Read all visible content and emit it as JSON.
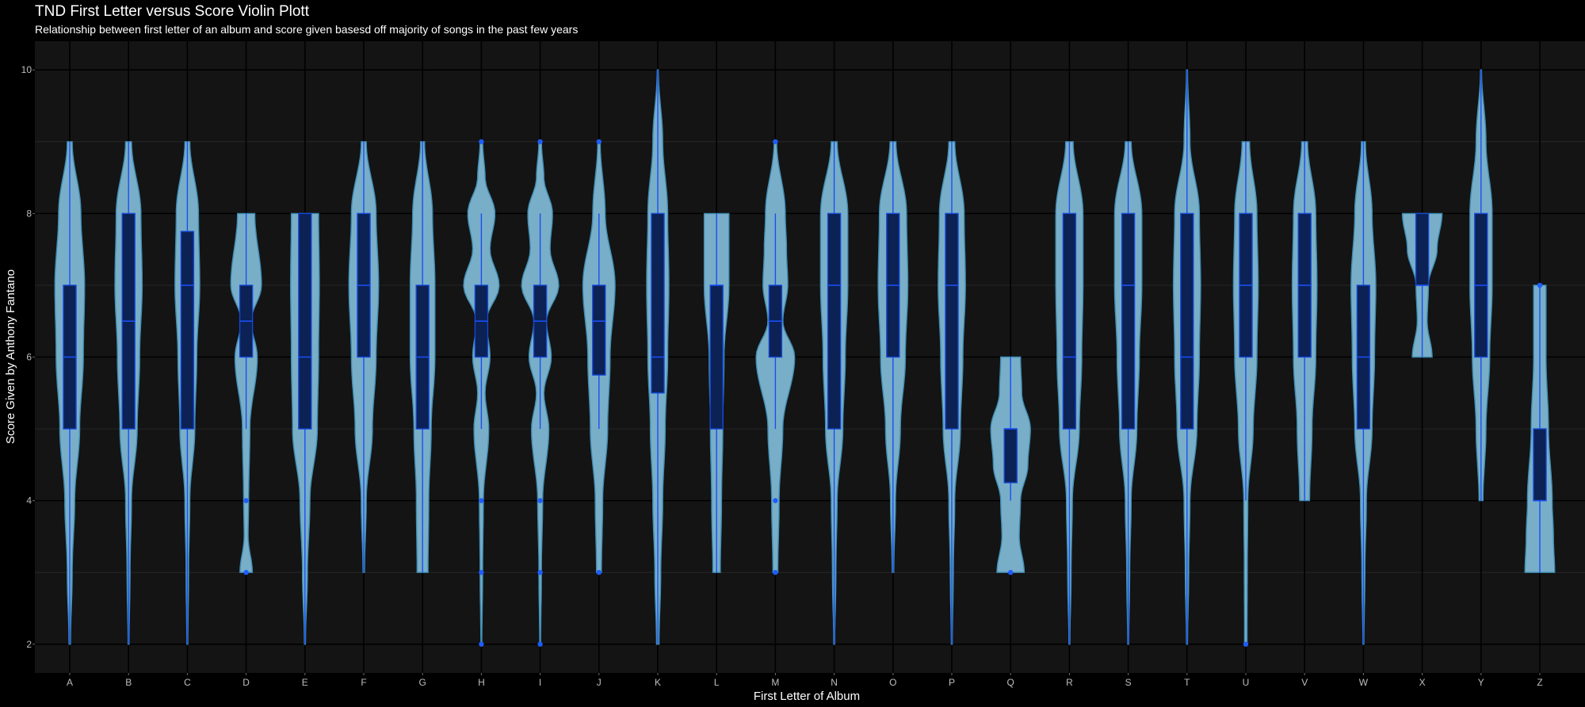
{
  "chart_data": {
    "type": "violin",
    "title": "TND First Letter versus Score Violin Plott",
    "subtitle": "Relationship between first letter of an album and score given basesd off majority of songs in the past few years",
    "xlabel": "First Letter of Album",
    "ylabel": "Score Given by Anthony Fantano",
    "ylim": [
      1.6,
      10.4
    ],
    "yticks": [
      2,
      4,
      6,
      8,
      10
    ],
    "grid": true,
    "legend": "none",
    "colors": {
      "background": "#000000",
      "panel": "#141414",
      "grid_major": "#000000",
      "grid_minor": "#262626",
      "violin_fill": "#79aec8",
      "violin_stroke": "#3f8db4",
      "box_fill": "#0c2154",
      "box_stroke": "#1447d6",
      "whisker": "#1a4ff2",
      "outlier": "#1e5cff"
    },
    "categories": [
      "A",
      "B",
      "C",
      "D",
      "E",
      "F",
      "G",
      "H",
      "I",
      "J",
      "K",
      "L",
      "M",
      "N",
      "O",
      "P",
      "Q",
      "R",
      "S",
      "T",
      "U",
      "V",
      "W",
      "X",
      "Y",
      "Z"
    ],
    "violins": [
      {
        "letter": "A",
        "min": 2,
        "max": 9,
        "profile": [
          [
            2,
            0.03
          ],
          [
            3,
            0.1
          ],
          [
            4,
            0.2
          ],
          [
            5,
            0.4
          ],
          [
            6,
            0.55
          ],
          [
            7,
            0.6
          ],
          [
            8,
            0.45
          ],
          [
            9,
            0.1
          ]
        ]
      },
      {
        "letter": "B",
        "min": 2,
        "max": 9,
        "profile": [
          [
            2,
            0.02
          ],
          [
            3,
            0.06
          ],
          [
            4,
            0.12
          ],
          [
            5,
            0.35
          ],
          [
            6,
            0.45
          ],
          [
            7,
            0.55
          ],
          [
            8,
            0.5
          ],
          [
            9,
            0.12
          ]
        ]
      },
      {
        "letter": "C",
        "min": 2,
        "max": 9,
        "profile": [
          [
            2,
            0.02
          ],
          [
            3,
            0.05
          ],
          [
            4,
            0.1
          ],
          [
            5,
            0.3
          ],
          [
            6,
            0.38
          ],
          [
            7,
            0.5
          ],
          [
            8,
            0.45
          ],
          [
            9,
            0.1
          ]
        ]
      },
      {
        "letter": "D",
        "min": 3,
        "max": 8,
        "profile": [
          [
            3,
            0.25
          ],
          [
            3.5,
            0.08
          ],
          [
            4,
            0.1
          ],
          [
            5,
            0.15
          ],
          [
            6,
            0.45
          ],
          [
            6.5,
            0.2
          ],
          [
            7,
            0.62
          ],
          [
            8,
            0.35
          ]
        ]
      },
      {
        "letter": "E",
        "min": 2,
        "max": 8,
        "profile": [
          [
            2,
            0.02
          ],
          [
            3,
            0.1
          ],
          [
            4,
            0.2
          ],
          [
            5,
            0.5
          ],
          [
            6,
            0.55
          ],
          [
            7,
            0.58
          ],
          [
            8,
            0.55
          ]
        ]
      },
      {
        "letter": "F",
        "min": 3,
        "max": 9,
        "profile": [
          [
            3,
            0.03
          ],
          [
            4,
            0.1
          ],
          [
            5,
            0.35
          ],
          [
            6,
            0.5
          ],
          [
            7,
            0.6
          ],
          [
            8,
            0.5
          ],
          [
            9,
            0.1
          ]
        ]
      },
      {
        "letter": "G",
        "min": 3,
        "max": 9,
        "profile": [
          [
            3,
            0.22
          ],
          [
            4,
            0.25
          ],
          [
            5,
            0.35
          ],
          [
            6,
            0.5
          ],
          [
            7,
            0.5
          ],
          [
            8,
            0.4
          ],
          [
            9,
            0.08
          ]
        ]
      },
      {
        "letter": "H",
        "min": 2,
        "max": 9,
        "profile": [
          [
            2,
            0.02
          ],
          [
            3,
            0.05
          ],
          [
            4,
            0.08
          ],
          [
            5,
            0.3
          ],
          [
            5.5,
            0.15
          ],
          [
            6,
            0.35
          ],
          [
            6.5,
            0.2
          ],
          [
            7,
            0.72
          ],
          [
            7.5,
            0.35
          ],
          [
            8,
            0.55
          ],
          [
            8.5,
            0.15
          ],
          [
            9,
            0.05
          ]
        ]
      },
      {
        "letter": "I",
        "min": 2,
        "max": 9,
        "profile": [
          [
            2,
            0.02
          ],
          [
            3,
            0.05
          ],
          [
            4,
            0.1
          ],
          [
            5,
            0.35
          ],
          [
            5.5,
            0.15
          ],
          [
            6,
            0.45
          ],
          [
            6.5,
            0.25
          ],
          [
            7,
            0.75
          ],
          [
            7.5,
            0.4
          ],
          [
            8,
            0.5
          ],
          [
            8.5,
            0.15
          ],
          [
            9,
            0.05
          ]
        ]
      },
      {
        "letter": "J",
        "min": 3,
        "max": 9,
        "profile": [
          [
            3,
            0.1
          ],
          [
            4,
            0.15
          ],
          [
            5,
            0.35
          ],
          [
            6,
            0.45
          ],
          [
            7,
            0.65
          ],
          [
            8,
            0.25
          ],
          [
            9,
            0.05
          ]
        ]
      },
      {
        "letter": "K",
        "min": 2,
        "max": 10,
        "profile": [
          [
            2,
            0.05
          ],
          [
            3,
            0.12
          ],
          [
            4,
            0.2
          ],
          [
            5,
            0.3
          ],
          [
            6,
            0.4
          ],
          [
            7,
            0.45
          ],
          [
            8,
            0.4
          ],
          [
            9,
            0.2
          ],
          [
            10,
            0.02
          ]
        ]
      },
      {
        "letter": "L",
        "min": 3,
        "max": 8,
        "profile": [
          [
            3,
            0.15
          ],
          [
            4,
            0.2
          ],
          [
            5,
            0.25
          ],
          [
            6,
            0.3
          ],
          [
            7,
            0.5
          ],
          [
            8,
            0.5
          ]
        ]
      },
      {
        "letter": "M",
        "min": 3,
        "max": 9,
        "profile": [
          [
            3,
            0.1
          ],
          [
            4,
            0.15
          ],
          [
            5,
            0.3
          ],
          [
            6,
            0.78
          ],
          [
            6.5,
            0.3
          ],
          [
            7,
            0.5
          ],
          [
            7.5,
            0.45
          ],
          [
            8,
            0.4
          ],
          [
            9,
            0.05
          ]
        ]
      },
      {
        "letter": "N",
        "min": 2,
        "max": 9,
        "profile": [
          [
            2,
            0.02
          ],
          [
            3,
            0.07
          ],
          [
            4,
            0.12
          ],
          [
            5,
            0.35
          ],
          [
            6,
            0.45
          ],
          [
            7,
            0.55
          ],
          [
            8,
            0.55
          ],
          [
            9,
            0.12
          ]
        ]
      },
      {
        "letter": "O",
        "min": 3,
        "max": 9,
        "profile": [
          [
            3,
            0.03
          ],
          [
            4,
            0.1
          ],
          [
            5,
            0.3
          ],
          [
            6,
            0.5
          ],
          [
            7,
            0.6
          ],
          [
            8,
            0.55
          ],
          [
            9,
            0.12
          ]
        ]
      },
      {
        "letter": "P",
        "min": 2,
        "max": 9,
        "profile": [
          [
            2,
            0.02
          ],
          [
            3,
            0.06
          ],
          [
            4,
            0.12
          ],
          [
            5,
            0.35
          ],
          [
            6,
            0.45
          ],
          [
            7,
            0.55
          ],
          [
            8,
            0.5
          ],
          [
            9,
            0.12
          ]
        ]
      },
      {
        "letter": "Q",
        "min": 3,
        "max": 6,
        "profile": [
          [
            3,
            0.55
          ],
          [
            3.5,
            0.35
          ],
          [
            4,
            0.4
          ],
          [
            4.5,
            0.7
          ],
          [
            5,
            0.8
          ],
          [
            5.5,
            0.45
          ],
          [
            6,
            0.4
          ]
        ]
      },
      {
        "letter": "R",
        "min": 2,
        "max": 9,
        "profile": [
          [
            2,
            0.02
          ],
          [
            3,
            0.07
          ],
          [
            4,
            0.12
          ],
          [
            5,
            0.4
          ],
          [
            6,
            0.5
          ],
          [
            7,
            0.55
          ],
          [
            8,
            0.55
          ],
          [
            9,
            0.15
          ]
        ]
      },
      {
        "letter": "S",
        "min": 2,
        "max": 9,
        "profile": [
          [
            2,
            0.02
          ],
          [
            3,
            0.06
          ],
          [
            4,
            0.12
          ],
          [
            5,
            0.35
          ],
          [
            6,
            0.45
          ],
          [
            7,
            0.55
          ],
          [
            8,
            0.55
          ],
          [
            9,
            0.12
          ]
        ]
      },
      {
        "letter": "T",
        "min": 2,
        "max": 10,
        "profile": [
          [
            2,
            0.02
          ],
          [
            3,
            0.07
          ],
          [
            4,
            0.12
          ],
          [
            5,
            0.4
          ],
          [
            6,
            0.5
          ],
          [
            7,
            0.55
          ],
          [
            8,
            0.5
          ],
          [
            9,
            0.12
          ],
          [
            10,
            0.02
          ]
        ]
      },
      {
        "letter": "U",
        "min": 2,
        "max": 9,
        "profile": [
          [
            2,
            0.05
          ],
          [
            3,
            0.06
          ],
          [
            4,
            0.08
          ],
          [
            5,
            0.3
          ],
          [
            6,
            0.45
          ],
          [
            7,
            0.5
          ],
          [
            8,
            0.45
          ],
          [
            9,
            0.15
          ]
        ]
      },
      {
        "letter": "V",
        "min": 4,
        "max": 9,
        "profile": [
          [
            4,
            0.2
          ],
          [
            5,
            0.3
          ],
          [
            6,
            0.45
          ],
          [
            7,
            0.5
          ],
          [
            8,
            0.45
          ],
          [
            9,
            0.12
          ]
        ]
      },
      {
        "letter": "W",
        "min": 2,
        "max": 9,
        "profile": [
          [
            2,
            0.02
          ],
          [
            3,
            0.06
          ],
          [
            4,
            0.12
          ],
          [
            5,
            0.35
          ],
          [
            6,
            0.45
          ],
          [
            7,
            0.5
          ],
          [
            8,
            0.35
          ],
          [
            9,
            0.08
          ]
        ]
      },
      {
        "letter": "X",
        "min": 6,
        "max": 8,
        "profile": [
          [
            6,
            0.4
          ],
          [
            6.5,
            0.2
          ],
          [
            7,
            0.25
          ],
          [
            7.5,
            0.6
          ],
          [
            8,
            0.8
          ]
        ]
      },
      {
        "letter": "Y",
        "min": 4,
        "max": 10,
        "profile": [
          [
            4,
            0.08
          ],
          [
            5,
            0.2
          ],
          [
            6,
            0.35
          ],
          [
            7,
            0.45
          ],
          [
            8,
            0.45
          ],
          [
            9,
            0.2
          ],
          [
            10,
            0.02
          ]
        ]
      },
      {
        "letter": "Z",
        "min": 3,
        "max": 7,
        "profile": [
          [
            3,
            0.6
          ],
          [
            3.5,
            0.55
          ],
          [
            4,
            0.5
          ],
          [
            5,
            0.35
          ],
          [
            6,
            0.25
          ],
          [
            7,
            0.25
          ]
        ]
      }
    ],
    "boxes": [
      {
        "letter": "A",
        "q1": 5,
        "median": 6,
        "q3": 7,
        "lower": 2,
        "upper": 9,
        "outliers": []
      },
      {
        "letter": "B",
        "q1": 5,
        "median": 6.5,
        "q3": 8,
        "lower": 2,
        "upper": 9,
        "outliers": []
      },
      {
        "letter": "C",
        "q1": 5,
        "median": 7,
        "q3": 7.75,
        "lower": 2,
        "upper": 9,
        "outliers": []
      },
      {
        "letter": "D",
        "q1": 6,
        "median": 6.5,
        "q3": 7,
        "lower": 5,
        "upper": 8,
        "outliers": [
          4,
          3
        ]
      },
      {
        "letter": "E",
        "q1": 5,
        "median": 6,
        "q3": 8,
        "lower": 2,
        "upper": 8,
        "outliers": []
      },
      {
        "letter": "F",
        "q1": 6,
        "median": 7,
        "q3": 8,
        "lower": 3,
        "upper": 9,
        "outliers": []
      },
      {
        "letter": "G",
        "q1": 5,
        "median": 6,
        "q3": 7,
        "lower": 3,
        "upper": 9,
        "outliers": []
      },
      {
        "letter": "H",
        "q1": 6,
        "median": 6.5,
        "q3": 7,
        "lower": 5,
        "upper": 8,
        "outliers": [
          9,
          4,
          3,
          2
        ]
      },
      {
        "letter": "I",
        "q1": 6,
        "median": 6.5,
        "q3": 7,
        "lower": 5,
        "upper": 8,
        "outliers": [
          9,
          4,
          3,
          2
        ]
      },
      {
        "letter": "J",
        "q1": 5.75,
        "median": 6.5,
        "q3": 7,
        "lower": 5,
        "upper": 8,
        "outliers": [
          9,
          3
        ]
      },
      {
        "letter": "K",
        "q1": 5.5,
        "median": 6,
        "q3": 8,
        "lower": 2,
        "upper": 10,
        "outliers": []
      },
      {
        "letter": "L",
        "q1": 5,
        "median": 7,
        "q3": 7,
        "lower": 3,
        "upper": 8,
        "outliers": []
      },
      {
        "letter": "M",
        "q1": 6,
        "median": 6.5,
        "q3": 7,
        "lower": 5,
        "upper": 8,
        "outliers": [
          9,
          4,
          3
        ]
      },
      {
        "letter": "N",
        "q1": 5,
        "median": 7,
        "q3": 8,
        "lower": 2,
        "upper": 9,
        "outliers": []
      },
      {
        "letter": "O",
        "q1": 6,
        "median": 7,
        "q3": 8,
        "lower": 3,
        "upper": 9,
        "outliers": []
      },
      {
        "letter": "P",
        "q1": 5,
        "median": 7,
        "q3": 8,
        "lower": 2,
        "upper": 9,
        "outliers": []
      },
      {
        "letter": "Q",
        "q1": 4.25,
        "median": 5,
        "q3": 5,
        "lower": 4,
        "upper": 6,
        "outliers": [
          3
        ]
      },
      {
        "letter": "R",
        "q1": 5,
        "median": 6,
        "q3": 8,
        "lower": 2,
        "upper": 9,
        "outliers": []
      },
      {
        "letter": "S",
        "q1": 5,
        "median": 7,
        "q3": 8,
        "lower": 2,
        "upper": 9,
        "outliers": []
      },
      {
        "letter": "T",
        "q1": 5,
        "median": 6,
        "q3": 8,
        "lower": 2,
        "upper": 10,
        "outliers": []
      },
      {
        "letter": "U",
        "q1": 6,
        "median": 7,
        "q3": 8,
        "lower": 4,
        "upper": 9,
        "outliers": [
          2
        ]
      },
      {
        "letter": "V",
        "q1": 6,
        "median": 7,
        "q3": 8,
        "lower": 4,
        "upper": 9,
        "outliers": []
      },
      {
        "letter": "W",
        "q1": 5,
        "median": 6,
        "q3": 7,
        "lower": 2,
        "upper": 9,
        "outliers": []
      },
      {
        "letter": "X",
        "q1": 7,
        "median": 7,
        "q3": 8,
        "lower": 6,
        "upper": 8,
        "outliers": []
      },
      {
        "letter": "Y",
        "q1": 6,
        "median": 7,
        "q3": 8,
        "lower": 4,
        "upper": 10,
        "outliers": []
      },
      {
        "letter": "Z",
        "q1": 4,
        "median": 4,
        "q3": 5,
        "lower": 3,
        "upper": 7,
        "outliers": [
          7
        ]
      }
    ]
  }
}
